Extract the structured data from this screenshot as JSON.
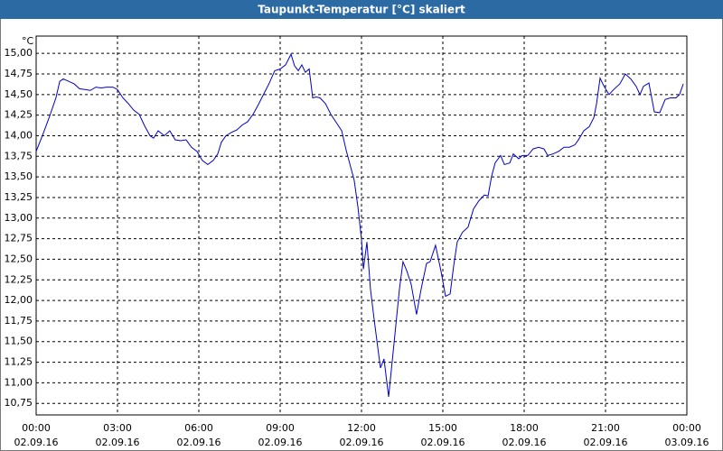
{
  "chart_data": {
    "type": "line",
    "title": "Taupunkt-Temperatur [°C] skaliert",
    "y_unit": "°C",
    "color": "#0000cc",
    "grid": true,
    "xlim": [
      0,
      24
    ],
    "xticks": [
      {
        "value": 0,
        "label": "00:00"
      },
      {
        "value": 3,
        "label": "03:00"
      },
      {
        "value": 6,
        "label": "06:00"
      },
      {
        "value": 9,
        "label": "09:00"
      },
      {
        "value": 12,
        "label": "12:00"
      },
      {
        "value": 15,
        "label": "15:00"
      },
      {
        "value": 18,
        "label": "18:00"
      },
      {
        "value": 21,
        "label": "21:00"
      },
      {
        "value": 24,
        "label": "00:00"
      }
    ],
    "xtick_dates": [
      "02.09.16",
      "02.09.16",
      "02.09.16",
      "02.09.16",
      "02.09.16",
      "02.09.16",
      "02.09.16",
      "02.09.16",
      "03.09.16"
    ],
    "ylim": [
      10.61,
      15.21
    ],
    "yticks": [
      {
        "value": 10.75,
        "label": "10,75"
      },
      {
        "value": 11,
        "label": "11,00"
      },
      {
        "value": 11.25,
        "label": "11,25"
      },
      {
        "value": 11.5,
        "label": "11,50"
      },
      {
        "value": 11.75,
        "label": "11,75"
      },
      {
        "value": 12,
        "label": "12,00"
      },
      {
        "value": 12.25,
        "label": "12,25"
      },
      {
        "value": 12.5,
        "label": "12,50"
      },
      {
        "value": 12.75,
        "label": "12,75"
      },
      {
        "value": 13,
        "label": "13,00"
      },
      {
        "value": 13.25,
        "label": "13,25"
      },
      {
        "value": 13.5,
        "label": "13,50"
      },
      {
        "value": 13.75,
        "label": "13,75"
      },
      {
        "value": 14,
        "label": "14,00"
      },
      {
        "value": 14.25,
        "label": "14,25"
      },
      {
        "value": 14.5,
        "label": "14,50"
      },
      {
        "value": 14.75,
        "label": "14,75"
      },
      {
        "value": 15,
        "label": "15,00"
      }
    ],
    "x": [
      0,
      0.23,
      0.5,
      0.73,
      0.87,
      1,
      1.2,
      1.4,
      1.6,
      1.83,
      2,
      2.2,
      2.4,
      2.6,
      2.83,
      3,
      3.2,
      3.4,
      3.6,
      3.8,
      4,
      4.2,
      4.33,
      4.5,
      4.73,
      4.93,
      5.13,
      5.33,
      5.53,
      5.73,
      5.93,
      6.13,
      6.33,
      6.53,
      6.7,
      6.83,
      7,
      7.2,
      7.4,
      7.6,
      7.8,
      8,
      8.2,
      8.4,
      8.6,
      8.8,
      9,
      9.2,
      9.4,
      9.53,
      9.67,
      9.8,
      9.93,
      10.07,
      10.2,
      10.33,
      10.47,
      10.67,
      10.87,
      11.07,
      11.27,
      11.43,
      11.6,
      11.73,
      11.87,
      12,
      12.07,
      12.2,
      12.33,
      12.47,
      12.6,
      12.7,
      12.83,
      13,
      13.2,
      13.4,
      13.53,
      13.67,
      13.83,
      14.03,
      14.2,
      14.4,
      14.53,
      14.73,
      14.93,
      15.1,
      15.27,
      15.4,
      15.53,
      15.73,
      15.93,
      16.13,
      16.33,
      16.53,
      16.67,
      16.8,
      16.93,
      17.13,
      17.27,
      17.47,
      17.6,
      17.8,
      17.93,
      18.13,
      18.33,
      18.53,
      18.73,
      18.87,
      19.07,
      19.27,
      19.47,
      19.67,
      19.87,
      20,
      20.2,
      20.4,
      20.57,
      20.67,
      20.8,
      20.93,
      21.13,
      21.33,
      21.53,
      21.73,
      21.93,
      22.13,
      22.27,
      22.4,
      22.6,
      22.8,
      23,
      23.2,
      23.4,
      23.6,
      23.73,
      23.87
    ],
    "values": [
      13.81,
      14.0,
      14.24,
      14.46,
      14.66,
      14.69,
      14.66,
      14.63,
      14.57,
      14.56,
      14.55,
      14.59,
      14.58,
      14.59,
      14.59,
      14.56,
      14.46,
      14.39,
      14.31,
      14.26,
      14.12,
      14.0,
      13.97,
      14.06,
      14.0,
      14.06,
      13.95,
      13.94,
      13.95,
      13.86,
      13.81,
      13.7,
      13.65,
      13.7,
      13.78,
      13.92,
      14.0,
      14.04,
      14.07,
      14.13,
      14.17,
      14.26,
      14.38,
      14.51,
      14.64,
      14.79,
      14.81,
      14.86,
      14.99,
      14.85,
      14.79,
      14.86,
      14.77,
      14.81,
      14.46,
      14.47,
      14.46,
      14.39,
      14.26,
      14.16,
      14.06,
      13.83,
      13.62,
      13.46,
      13.13,
      12.74,
      12.38,
      12.71,
      12.14,
      11.76,
      11.43,
      11.18,
      11.29,
      10.83,
      11.48,
      12.14,
      12.47,
      12.36,
      12.2,
      11.83,
      12.14,
      12.45,
      12.47,
      12.67,
      12.36,
      12.05,
      12.08,
      12.42,
      12.71,
      12.83,
      12.89,
      13.11,
      13.21,
      13.28,
      13.27,
      13.51,
      13.67,
      13.76,
      13.65,
      13.67,
      13.78,
      13.72,
      13.76,
      13.76,
      13.84,
      13.86,
      13.84,
      13.76,
      13.78,
      13.81,
      13.86,
      13.86,
      13.89,
      13.95,
      14.06,
      14.11,
      14.22,
      14.39,
      14.7,
      14.61,
      14.5,
      14.57,
      14.63,
      14.75,
      14.69,
      14.6,
      14.5,
      14.6,
      14.64,
      14.29,
      14.28,
      14.44,
      14.46,
      14.46,
      14.5,
      14.63
    ]
  }
}
